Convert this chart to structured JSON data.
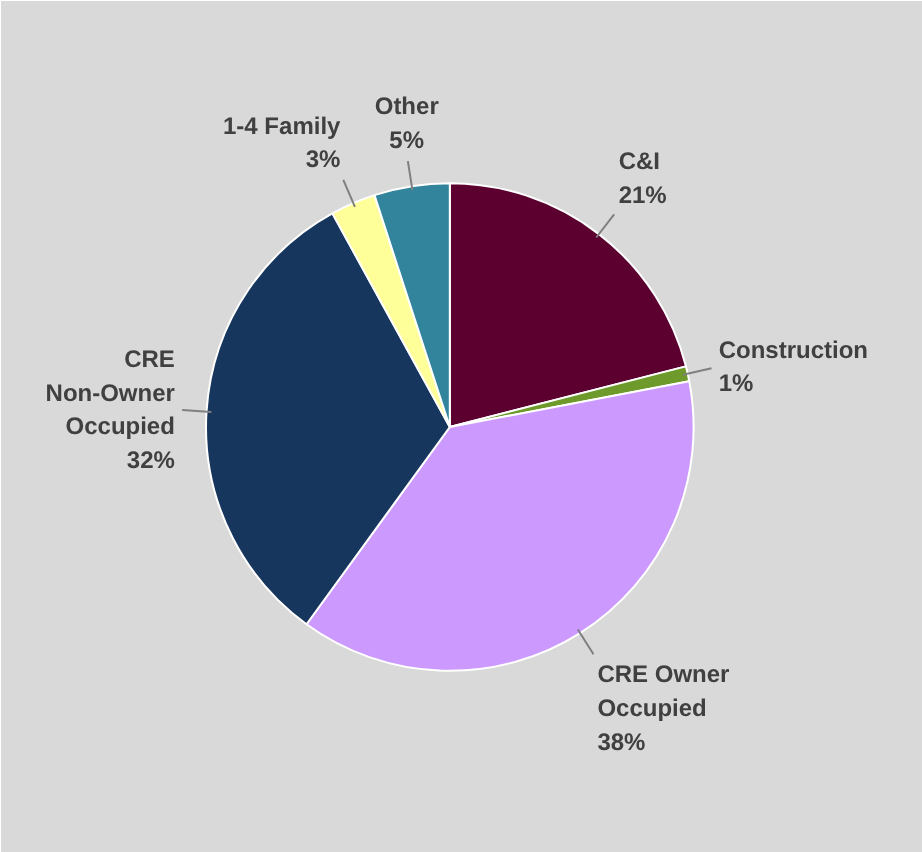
{
  "chart_data": {
    "type": "pie",
    "categories": [
      "C&I",
      "Construction",
      "CRE Owner Occupied",
      "CRE Non-Owner Occupied",
      "1-4 Family",
      "Other"
    ],
    "values": [
      21,
      1,
      38,
      32,
      3,
      5
    ],
    "colors": [
      "#5c0030",
      "#6e9a2c",
      "#cc99ff",
      "#17365d",
      "#ffff99",
      "#31849b"
    ],
    "value_labels": [
      "21%",
      "1%",
      "38%",
      "32%",
      "3%",
      "5%"
    ]
  }
}
